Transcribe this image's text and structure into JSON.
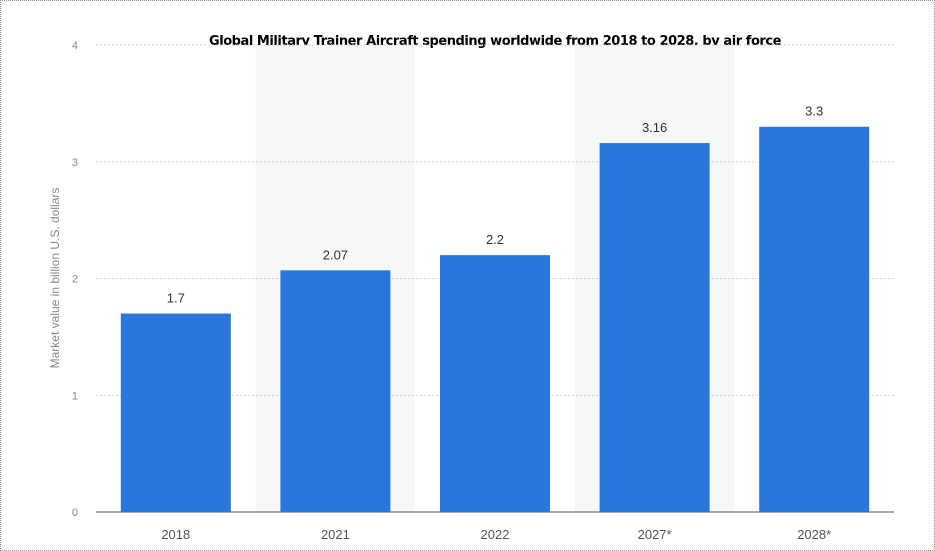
{
  "chart_data": {
    "type": "bar",
    "title": "Global Military Trainer Aircraft spending worldwide from 2018 to 2028, by air force",
    "xlabel": "",
    "ylabel": "Market value in billion U.S. dollars",
    "categories": [
      "2018",
      "2021",
      "2022",
      "2027*",
      "2028*"
    ],
    "values": [
      1.7,
      2.07,
      2.2,
      3.16,
      3.3
    ],
    "value_labels": [
      "1.7",
      "2.07",
      "2.2",
      "3.16",
      "3.3"
    ],
    "ylim": [
      0,
      4
    ],
    "yticks": [
      0,
      1,
      2,
      3,
      4
    ],
    "grid": true,
    "legend": "none",
    "bar_color": "#2a76dd",
    "alternating_band_color": "#f7f7f7"
  }
}
